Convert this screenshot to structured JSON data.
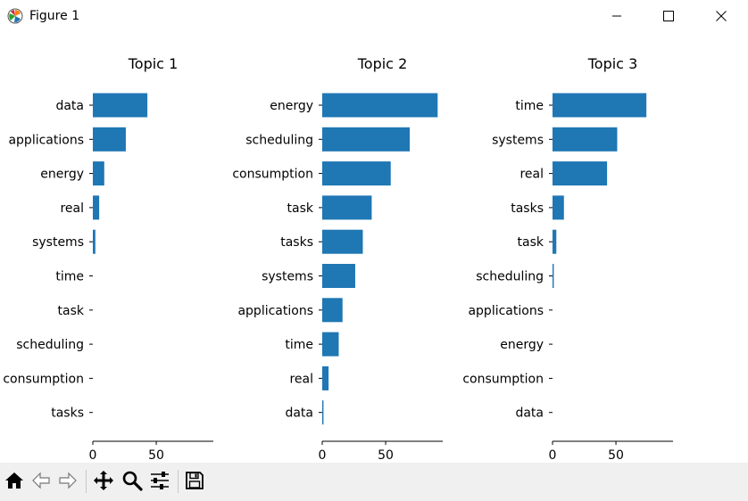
{
  "window": {
    "title": "Figure 1"
  },
  "icons": {
    "app": "matplotlib-logo-icon",
    "minimize": "minimize-icon",
    "maximize": "maximize-icon",
    "close": "close-icon",
    "home": "home-icon",
    "back": "arrow-left-icon",
    "forward": "arrow-right-icon",
    "pan": "pan-move-icon",
    "zoom": "zoom-magnifier-icon",
    "configure": "configure-subplots-icon",
    "save": "save-floppy-icon"
  },
  "colors": {
    "bar": "#1f77b4",
    "toolbar": "#f0f0f0"
  },
  "chart_data": [
    {
      "type": "bar",
      "orientation": "horizontal",
      "title": "Topic 1",
      "categories": [
        "data",
        "applications",
        "energy",
        "real",
        "systems",
        "time",
        "task",
        "scheduling",
        "consumption",
        "tasks"
      ],
      "values": [
        43,
        26,
        9,
        5,
        2,
        0,
        0,
        0,
        0,
        0
      ],
      "xticks": [
        "0",
        "50"
      ],
      "xlim": [
        0,
        95
      ]
    },
    {
      "type": "bar",
      "orientation": "horizontal",
      "title": "Topic 2",
      "categories": [
        "energy",
        "scheduling",
        "consumption",
        "task",
        "tasks",
        "systems",
        "applications",
        "time",
        "real",
        "data"
      ],
      "values": [
        91,
        69,
        54,
        39,
        32,
        26,
        16,
        13,
        5,
        1
      ],
      "xticks": [
        "0",
        "50"
      ],
      "xlim": [
        0,
        95
      ]
    },
    {
      "type": "bar",
      "orientation": "horizontal",
      "title": "Topic 3",
      "categories": [
        "time",
        "systems",
        "real",
        "tasks",
        "task",
        "scheduling",
        "applications",
        "energy",
        "consumption",
        "data"
      ],
      "values": [
        74,
        51,
        43,
        9,
        3,
        1,
        0,
        0,
        0,
        0
      ],
      "xticks": [
        "0",
        "50"
      ],
      "xlim": [
        0,
        95
      ]
    }
  ]
}
